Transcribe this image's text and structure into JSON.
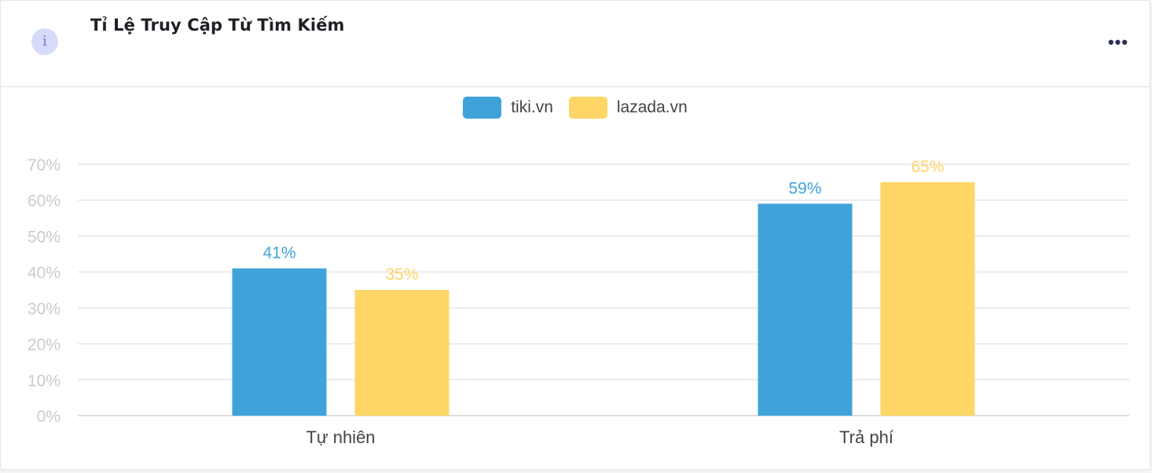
{
  "header": {
    "title": "Tỉ Lệ Truy Cập Từ Tìm Kiếm",
    "info_icon_glyph": "i",
    "more_icon_glyph": "•••"
  },
  "chart_data": {
    "type": "bar",
    "categories": [
      "Tự nhiên",
      "Trả phí"
    ],
    "series": [
      {
        "name": "tiki.vn",
        "values": [
          41,
          59
        ],
        "labels": [
          "41%",
          "59%"
        ],
        "color": "#3fa3da"
      },
      {
        "name": "lazada.vn",
        "values": [
          35,
          65
        ],
        "labels": [
          "35%",
          "65%"
        ],
        "color": "#fed667"
      }
    ],
    "y_ticks": [
      "0%",
      "10%",
      "20%",
      "30%",
      "40%",
      "50%",
      "60%",
      "70%"
    ],
    "ylim": [
      0,
      70
    ],
    "grid": true,
    "legend_position": "top-center",
    "title": "",
    "xlabel": "",
    "ylabel": ""
  }
}
